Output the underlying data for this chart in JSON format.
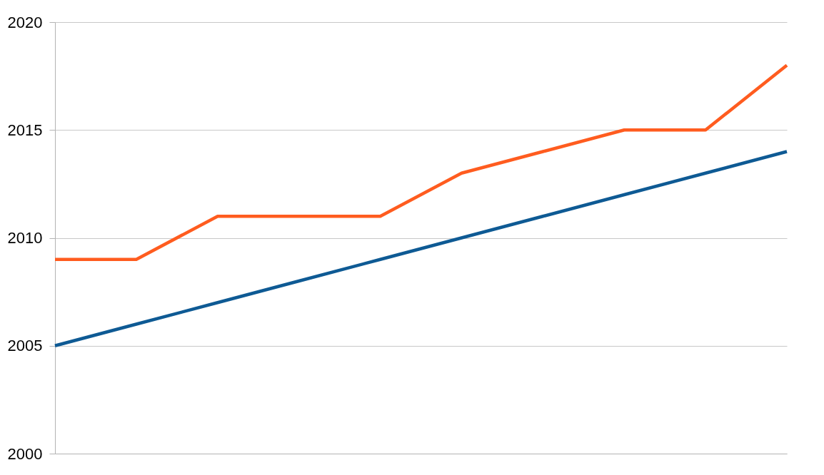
{
  "chart_data": {
    "type": "line",
    "categories": [
      null,
      null,
      null,
      null,
      null,
      null,
      null,
      null,
      null,
      null
    ],
    "series": [
      {
        "color": "#0e5a94",
        "values": [
          2005,
          2006,
          2007,
          2008,
          2009,
          2010,
          2011,
          2012,
          2013,
          2014
        ]
      },
      {
        "color": "#ff5c1f",
        "values": [
          2009,
          2009,
          2011,
          2011,
          2011,
          2013,
          2014,
          2015,
          2015,
          2018
        ]
      }
    ],
    "ylim": [
      2000,
      2020
    ],
    "yticks": [
      2000,
      2005,
      2010,
      2015,
      2020
    ],
    "grid": "y",
    "legend": false,
    "marker": "none",
    "line_style": "solid",
    "tick_labels": "y"
  }
}
